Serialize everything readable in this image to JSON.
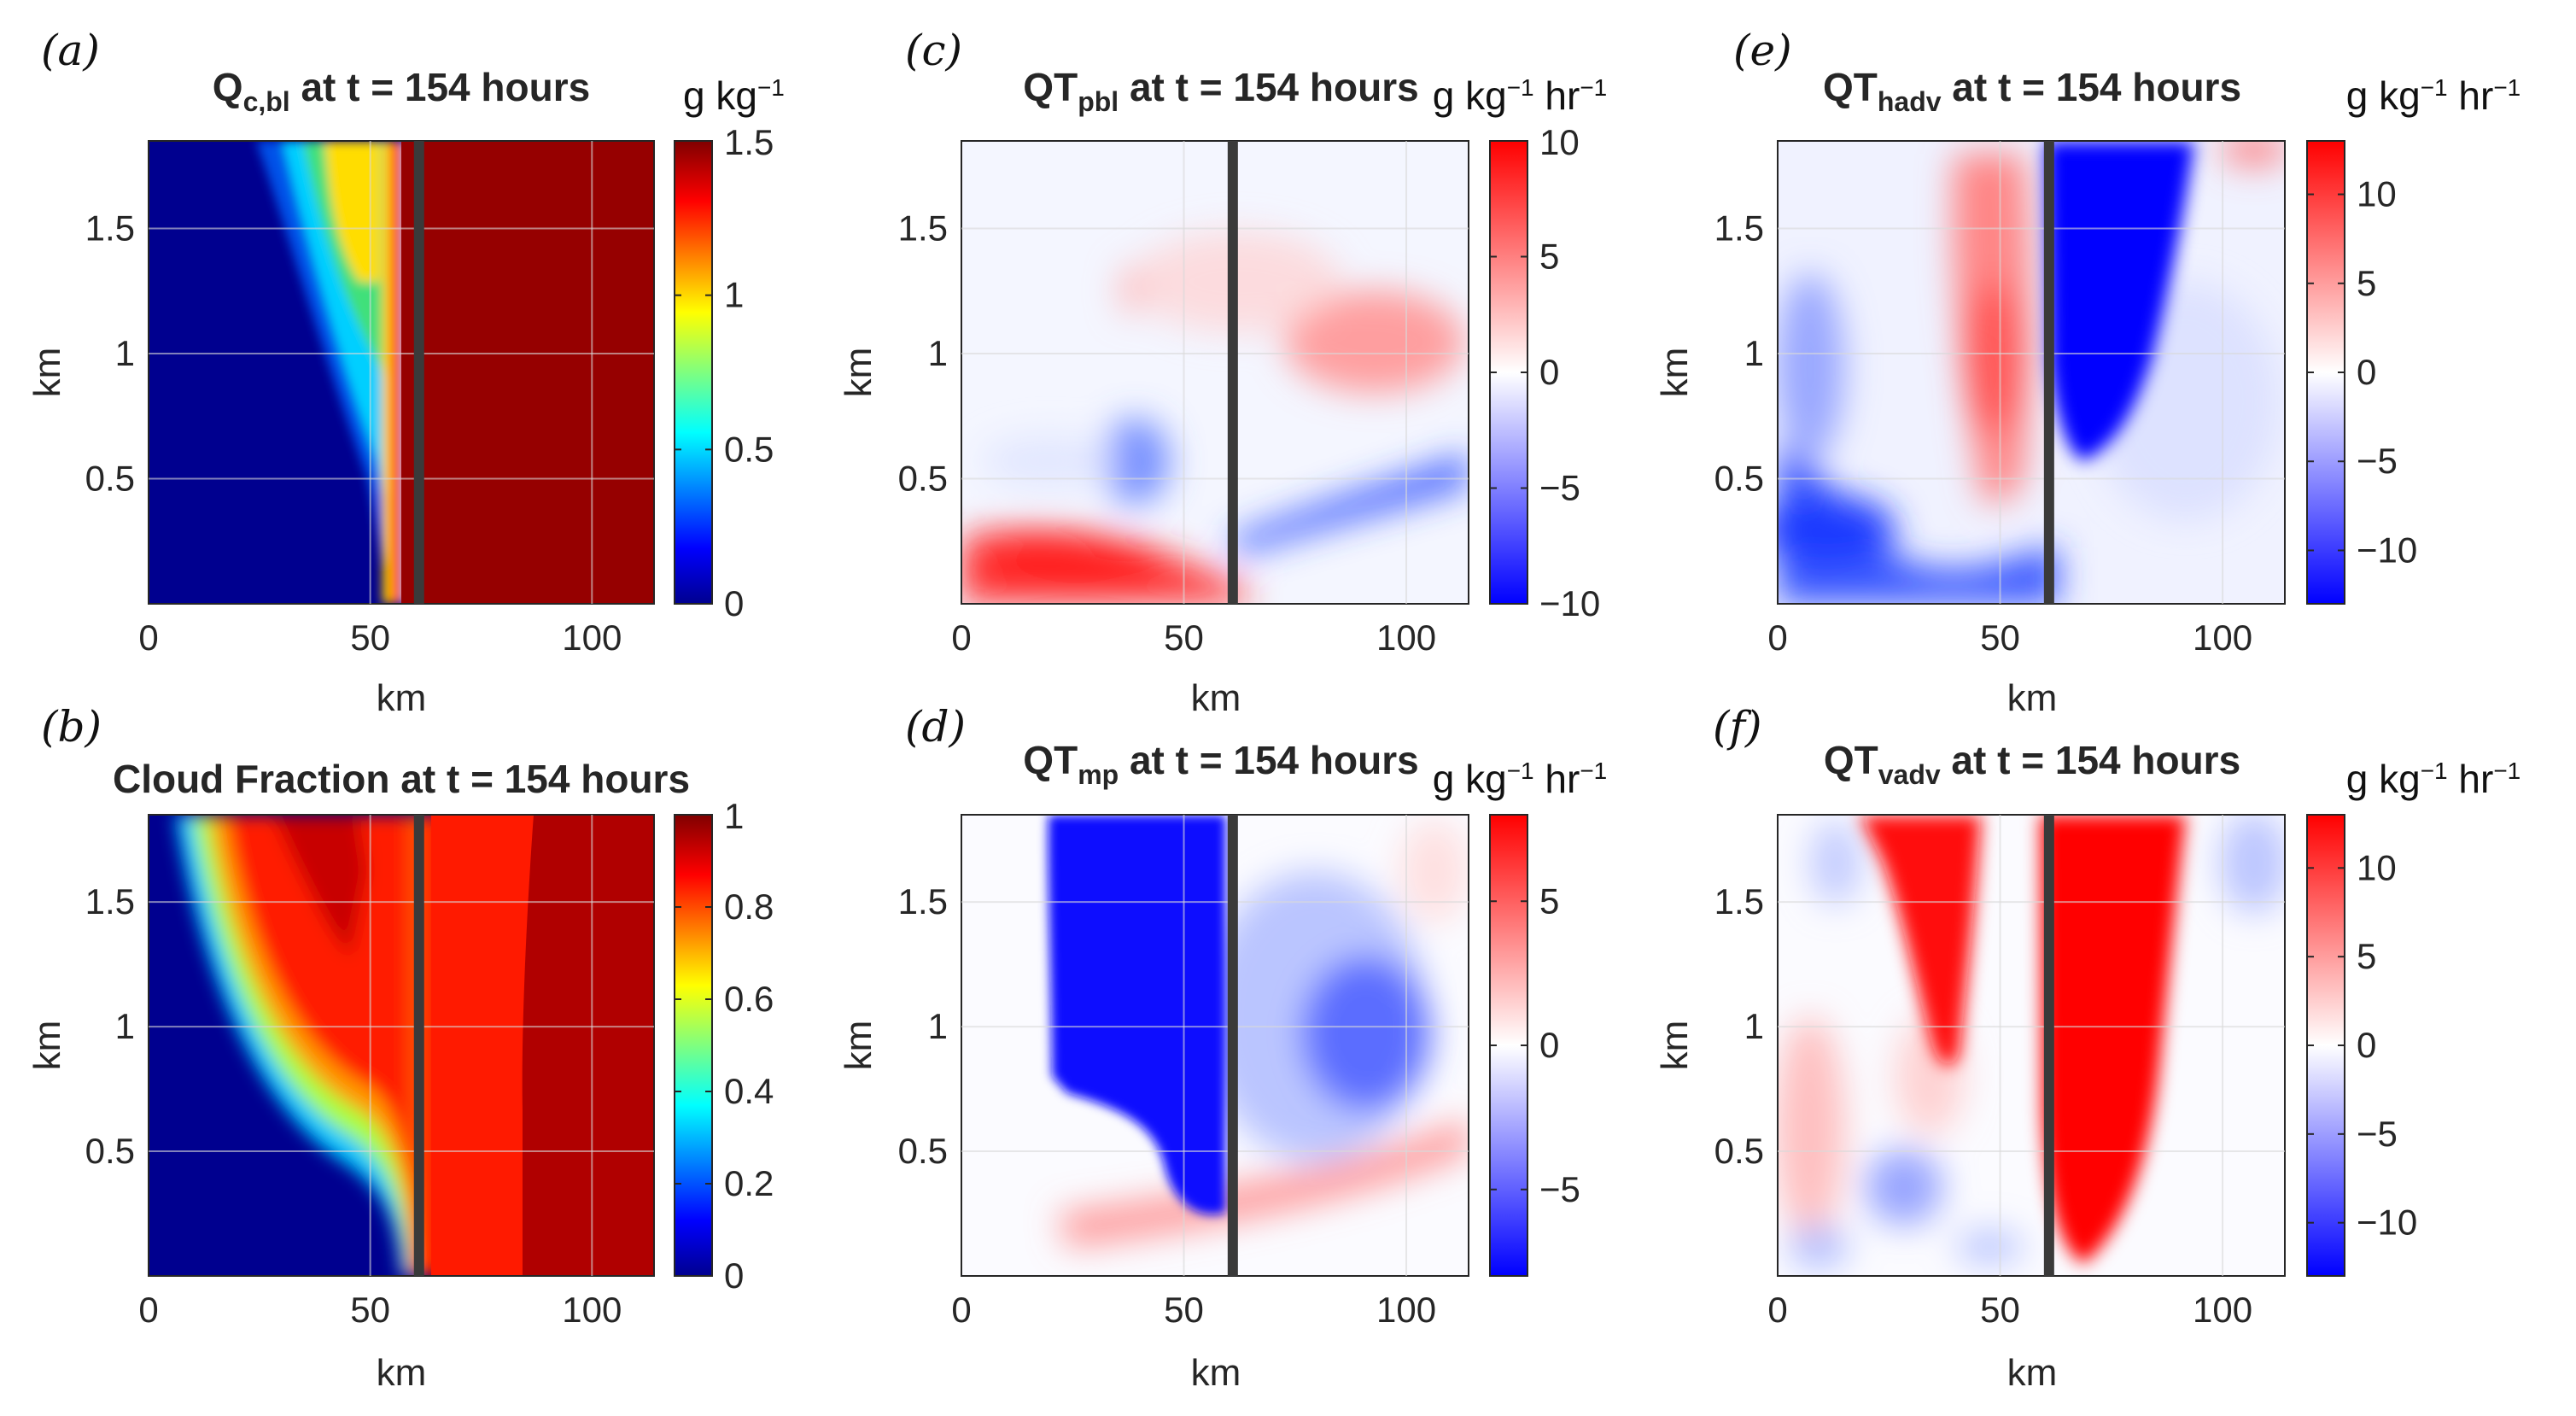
{
  "figure": {
    "colors": {
      "boundary_line": "#3a3a3a",
      "grid": "#d9d9d9",
      "axis": "#262626"
    }
  },
  "chart_data": [
    {
      "id": "a",
      "type": "heatmap",
      "letter": "(a)",
      "title": {
        "pre": "Q",
        "sub": "c,bl",
        "post": " at t = 154 hours"
      },
      "xlabel": "km",
      "ylabel": "km",
      "xticks": [
        "0",
        "50",
        "100"
      ],
      "yticks": [
        "0.5",
        "1",
        "1.5"
      ],
      "xlim": [
        0,
        114
      ],
      "ylim": [
        0,
        1.85
      ],
      "colormap": "jet",
      "clim": [
        0,
        1.5
      ],
      "colorbar": {
        "unit_main": "g kg",
        "unit_sup": "−1",
        "unit_tail": "",
        "ticks": [
          "0",
          "0.5",
          "1",
          "1.5"
        ],
        "tick_values": [
          0,
          0.5,
          1,
          1.5
        ]
      },
      "boundary_x": 61,
      "description": "Cloud liquid ~0 for x < 20 km; increasing to ~1.2 near x = 35–50 km above 1 km; saturated maximum (>1.5) for x > 55 km."
    },
    {
      "id": "b",
      "type": "heatmap",
      "letter": "(b)",
      "title": {
        "pre": "Cloud Fraction at t = 154 hours",
        "sub": "",
        "post": ""
      },
      "xlabel": "km",
      "ylabel": "km",
      "xticks": [
        "0",
        "50",
        "100"
      ],
      "yticks": [
        "0.5",
        "1",
        "1.5"
      ],
      "xlim": [
        0,
        114
      ],
      "ylim": [
        0,
        1.85
      ],
      "colormap": "jet",
      "clim": [
        0,
        1
      ],
      "colorbar": {
        "unit_main": "",
        "unit_sup": "",
        "unit_tail": "",
        "ticks": [
          "0",
          "0.2",
          "0.4",
          "0.6",
          "0.8",
          "1"
        ],
        "tick_values": [
          0,
          0.2,
          0.4,
          0.6,
          0.8,
          1
        ]
      },
      "boundary_x": 61,
      "description": "Cloud fraction 0 in lower-left; rises to ~0.9 above a boundary curving from x≈18 km at top to x≈55 km near surface; ~1 for x > 65 km."
    },
    {
      "id": "c",
      "type": "heatmap",
      "letter": "(c)",
      "title": {
        "pre": "QT",
        "sub": "pbl",
        "post": " at t = 154 hours"
      },
      "xlabel": "km",
      "ylabel": "km",
      "xticks": [
        "0",
        "50",
        "100"
      ],
      "yticks": [
        "0.5",
        "1",
        "1.5"
      ],
      "xlim": [
        0,
        114
      ],
      "ylim": [
        0,
        1.85
      ],
      "colormap": "bwr",
      "clim": [
        -10,
        10
      ],
      "colorbar": {
        "unit_main": "g kg",
        "unit_sup": "−1",
        "unit_tail": " hr",
        "unit_tail_sup": "−1",
        "ticks": [
          "−10",
          "−5",
          "0",
          "5",
          "10"
        ],
        "tick_values": [
          -10,
          -5,
          0,
          5,
          10
        ]
      },
      "boundary_x": 61,
      "description": "Positive (~+8) tendency in a surface layer for x < 60 km; negative band (~−5) rising from x=60 to 114 km at 0.3–0.6 km; weak positive near 1–1.2 km for x > 70 km."
    },
    {
      "id": "d",
      "type": "heatmap",
      "letter": "(d)",
      "title": {
        "pre": "QT",
        "sub": "mp",
        "post": " at t = 154 hours"
      },
      "xlabel": "km",
      "ylabel": "km",
      "xticks": [
        "0",
        "50",
        "100"
      ],
      "yticks": [
        "0.5",
        "1",
        "1.5"
      ],
      "xlim": [
        0,
        114
      ],
      "ylim": [
        0,
        1.85
      ],
      "colormap": "bwr",
      "clim": [
        -8,
        8
      ],
      "colorbar": {
        "unit_main": "g kg",
        "unit_sup": "−1",
        "unit_tail": " hr",
        "unit_tail_sup": "−1",
        "ticks": [
          "−5",
          "0",
          "5"
        ],
        "tick_values": [
          -5,
          0,
          5
        ]
      },
      "boundary_x": 61,
      "description": "Strong negative (< −8) column for x = 20–60 km above 0.3 km; moderate negative (~−5) blob near x = 85 km, 1 km; weak positive band rising near 0.2–0.6 km."
    },
    {
      "id": "e",
      "type": "heatmap",
      "letter": "(e)",
      "title": {
        "pre": "QT",
        "sub": "hadv",
        "post": " at t = 154 hours"
      },
      "xlabel": "km",
      "ylabel": "km",
      "xticks": [
        "0",
        "50",
        "100"
      ],
      "yticks": [
        "0.5",
        "1",
        "1.5"
      ],
      "xlim": [
        0,
        114
      ],
      "ylim": [
        0,
        1.85
      ],
      "colormap": "bwr",
      "clim": [
        -13,
        13
      ],
      "colorbar": {
        "unit_main": "g kg",
        "unit_sup": "−1",
        "unit_tail": " hr",
        "unit_tail_sup": "−1",
        "ticks": [
          "−10",
          "−5",
          "0",
          "5",
          "10"
        ],
        "tick_values": [
          -10,
          -5,
          0,
          5,
          10
        ]
      },
      "boundary_x": 61,
      "description": "Strong negative (< −12) column just right of the boundary (x = 60–80 km) above 0.6 km; positive column (~+6) near x = 45 km; negative band near surface for x < 60 km."
    },
    {
      "id": "f",
      "type": "heatmap",
      "letter": "(f)",
      "title": {
        "pre": "QT",
        "sub": "vadv",
        "post": " at t = 154 hours"
      },
      "xlabel": "km",
      "ylabel": "km",
      "xticks": [
        "0",
        "50",
        "100"
      ],
      "yticks": [
        "0.5",
        "1",
        "1.5"
      ],
      "xlim": [
        0,
        114
      ],
      "ylim": [
        0,
        1.85
      ],
      "colormap": "bwr",
      "clim": [
        -13,
        13
      ],
      "colorbar": {
        "unit_main": "g kg",
        "unit_sup": "−1",
        "unit_tail": " hr",
        "unit_tail_sup": "−1",
        "ticks": [
          "−10",
          "−5",
          "0",
          "5",
          "10"
        ],
        "tick_values": [
          -10,
          -5,
          0,
          5,
          10
        ]
      },
      "boundary_x": 61,
      "description": "Strong positive (> +12) columns at x = 15–45 km and x = 60–85 km; weak mixed values elsewhere, slight negatives at x < 15 km and x > 100 km."
    }
  ]
}
